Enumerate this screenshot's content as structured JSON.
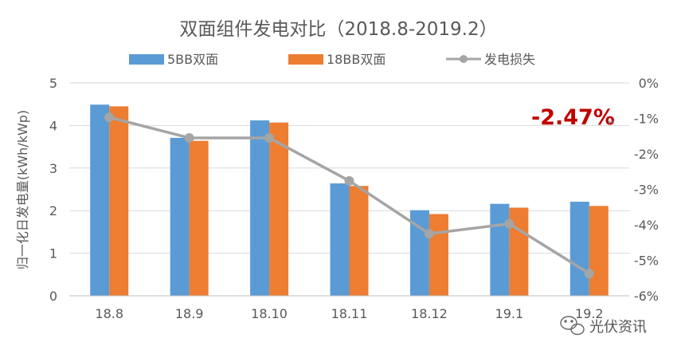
{
  "chart_data": {
    "type": "bar",
    "title": "双面组件发电对比（2018.8-2019.2）",
    "categories": [
      "18.8",
      "18.9",
      "18.10",
      "18.11",
      "18.12",
      "19.1",
      "19.2"
    ],
    "series": [
      {
        "name": "5BB双面",
        "type": "bar",
        "axis": "left",
        "color": "#5b9bd5",
        "values": [
          4.49,
          3.71,
          4.12,
          2.64,
          2.01,
          2.16,
          2.21
        ]
      },
      {
        "name": "18BB双面",
        "type": "bar",
        "axis": "left",
        "color": "#ed7d31",
        "values": [
          4.45,
          3.64,
          4.07,
          2.58,
          1.92,
          2.07,
          2.11
        ]
      },
      {
        "name": "发电损失",
        "type": "line",
        "axis": "right",
        "color": "#a5a5a5",
        "values": [
          -0.97,
          -1.55,
          -1.55,
          -2.76,
          -4.25,
          -3.97,
          -5.37
        ]
      }
    ],
    "ylabel": "归一化日发电量(kWh/kWp)",
    "ylim": [
      0,
      5
    ],
    "y_ticks": [
      "0",
      "1",
      "2",
      "3",
      "4",
      "5"
    ],
    "y2lim": [
      -6,
      0
    ],
    "y2_ticks": [
      "0%",
      "-1%",
      "-2%",
      "-3%",
      "-4%",
      "-5%",
      "-6%"
    ],
    "grid": true,
    "legend_position": "top",
    "annotation": {
      "text": "-2.47%",
      "color": "#c00000"
    },
    "watermark": "光伏资讯"
  }
}
